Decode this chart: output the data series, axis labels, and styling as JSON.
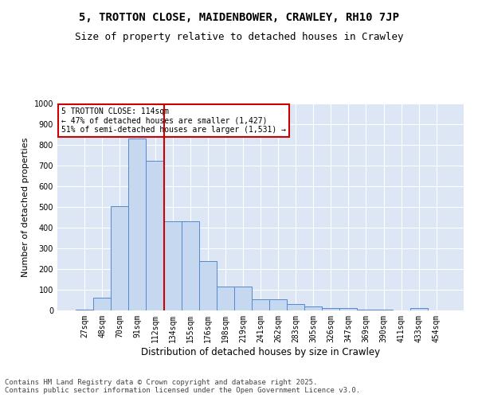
{
  "title": "5, TROTTON CLOSE, MAIDENBOWER, CRAWLEY, RH10 7JP",
  "subtitle": "Size of property relative to detached houses in Crawley",
  "xlabel": "Distribution of detached houses by size in Crawley",
  "ylabel": "Number of detached properties",
  "categories": [
    "27sqm",
    "48sqm",
    "70sqm",
    "91sqm",
    "112sqm",
    "134sqm",
    "155sqm",
    "176sqm",
    "198sqm",
    "219sqm",
    "241sqm",
    "262sqm",
    "283sqm",
    "305sqm",
    "326sqm",
    "347sqm",
    "369sqm",
    "390sqm",
    "411sqm",
    "433sqm",
    "454sqm"
  ],
  "values": [
    5,
    60,
    505,
    830,
    725,
    430,
    430,
    240,
    115,
    115,
    55,
    55,
    30,
    20,
    10,
    10,
    5,
    5,
    0,
    10,
    0
  ],
  "bar_color": "#c5d8f0",
  "bar_edge_color": "#5588cc",
  "background_color": "#dce6f5",
  "grid_color": "#ffffff",
  "property_line_color": "#cc0000",
  "annotation_text": "5 TROTTON CLOSE: 114sqm\n← 47% of detached houses are smaller (1,427)\n51% of semi-detached houses are larger (1,531) →",
  "annotation_box_color": "white",
  "annotation_box_edge_color": "#cc0000",
  "ylim": [
    0,
    1000
  ],
  "yticks": [
    0,
    100,
    200,
    300,
    400,
    500,
    600,
    700,
    800,
    900,
    1000
  ],
  "footer": "Contains HM Land Registry data © Crown copyright and database right 2025.\nContains public sector information licensed under the Open Government Licence v3.0.",
  "title_fontsize": 10,
  "subtitle_fontsize": 9,
  "xlabel_fontsize": 8.5,
  "ylabel_fontsize": 8,
  "tick_fontsize": 7,
  "footer_fontsize": 6.5
}
